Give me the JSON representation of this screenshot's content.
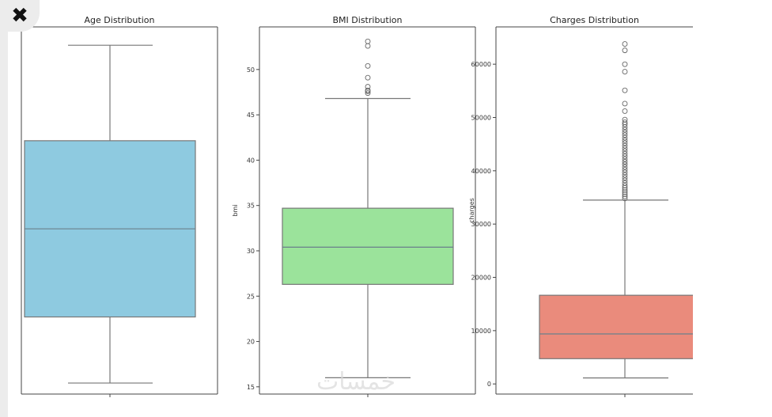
{
  "close_symbol": "✖",
  "watermark": "خمسات",
  "chart_data": [
    {
      "type": "box",
      "title": "Age Distribution",
      "ylabel": "",
      "color": "#8ecae0",
      "ylim": [
        16.5,
        66.5
      ],
      "yticks": [],
      "whisker_low": 18,
      "q1": 27,
      "median": 39,
      "q3": 51,
      "whisker_high": 64,
      "outliers": []
    },
    {
      "type": "box",
      "title": "BMI Distribution",
      "ylabel": "bmi",
      "color": "#9be39b",
      "ylim": [
        14.2,
        54.7
      ],
      "yticks": [
        15,
        20,
        25,
        30,
        35,
        40,
        45,
        50
      ],
      "whisker_low": 16,
      "q1": 26.3,
      "median": 30.4,
      "q3": 34.7,
      "whisker_high": 46.8,
      "outliers": [
        47.4,
        47.6,
        47.7,
        48.1,
        49.1,
        50.4,
        52.6,
        53.1
      ]
    },
    {
      "type": "box",
      "title": "Charges Distribution",
      "ylabel": "charges",
      "color": "#ea8b7c",
      "ylim": [
        -1900,
        67000
      ],
      "yticks": [
        0,
        10000,
        20000,
        30000,
        40000,
        50000,
        60000
      ],
      "whisker_low": 1122,
      "q1": 4740,
      "median": 9382,
      "q3": 16640,
      "whisker_high": 34500,
      "outliers": [
        34800,
        35200,
        35600,
        36000,
        36400,
        36800,
        37200,
        37700,
        38200,
        38700,
        39200,
        39700,
        40200,
        40700,
        41200,
        41700,
        42200,
        42700,
        43200,
        43700,
        44200,
        44700,
        45200,
        45700,
        46200,
        46700,
        47200,
        47700,
        48200,
        48700,
        49100,
        49600,
        51200,
        52600,
        55100,
        58600,
        60000,
        62600,
        63800
      ]
    }
  ]
}
